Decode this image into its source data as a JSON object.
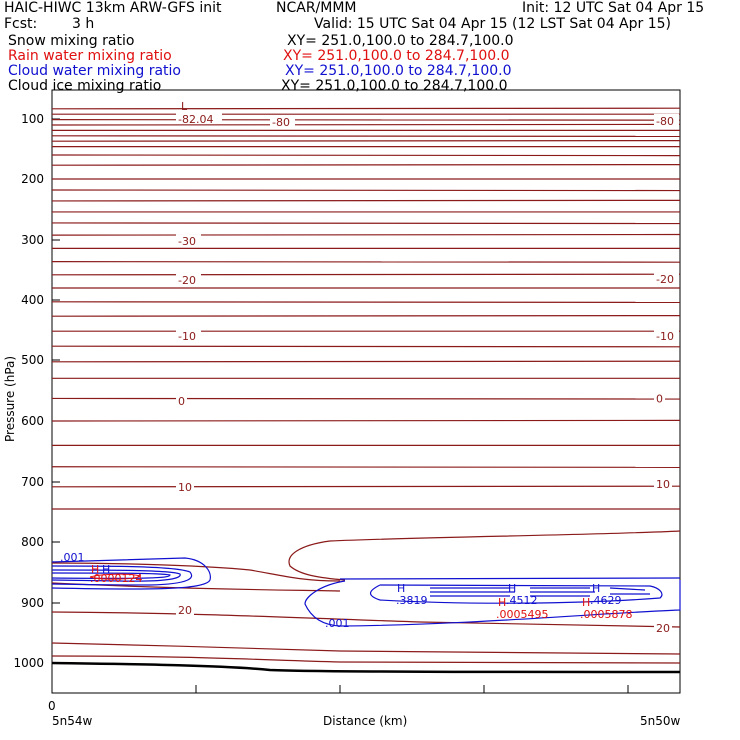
{
  "header": {
    "model": "HAIC-HIWC 13km ARW-GFS init",
    "org": "NCAR/MMM",
    "init": "Init: 12 UTC Sat 04 Apr 15",
    "fcst_label": "Fcst:",
    "fcst_value": "3 h",
    "valid": "Valid: 15 UTC Sat 04 Apr 15 (12 LST Sat 04 Apr 15)"
  },
  "fields": [
    {
      "name": "Snow mixing ratio",
      "xy": "XY= 251.0,100.0 to 284.7,100.0",
      "color": "#000000"
    },
    {
      "name": "Rain water mixing ratio",
      "xy": "XY= 251.0,100.0 to 284.7,100.0",
      "color": "#e01010"
    },
    {
      "name": "Cloud water mixing ratio",
      "xy": "XY= 251.0,100.0 to 284.7,100.0",
      "color": "#1010d0"
    },
    {
      "name": "Cloud ice mixing ratio",
      "xy": "XY= 251.0,100.0 to 284.7,100.0",
      "color": "#000000"
    }
  ],
  "chart_data": {
    "type": "contour-cross-section",
    "ylabel": "Pressure (hPa)",
    "xlabel": "Distance (km)",
    "y_ticks": [
      100,
      200,
      300,
      400,
      500,
      600,
      700,
      800,
      900,
      1000
    ],
    "x_tick_zero": "0",
    "x_left_label": "5n54w",
    "x_right_label": "5n50w",
    "temperature_labels": [
      {
        "text": "-82.04",
        "side": "left",
        "pressure": 100
      },
      {
        "text": "-80",
        "side": "middle",
        "pressure": 105
      },
      {
        "text": "-80",
        "side": "right",
        "pressure": 103
      },
      {
        "text": "-30",
        "side": "left",
        "pressure": 302
      },
      {
        "text": "-20",
        "side": "left",
        "pressure": 367
      },
      {
        "text": "-20",
        "side": "right",
        "pressure": 365
      },
      {
        "text": "-10",
        "side": "left",
        "pressure": 460
      },
      {
        "text": "-10",
        "side": "right",
        "pressure": 460
      },
      {
        "text": "0",
        "side": "left",
        "pressure": 567
      },
      {
        "text": "0",
        "side": "right",
        "pressure": 563
      },
      {
        "text": "10",
        "side": "left",
        "pressure": 708
      },
      {
        "text": "10",
        "side": "right",
        "pressure": 703
      },
      {
        "text": "20",
        "side": "left",
        "pressure": 912
      },
      {
        "text": "20",
        "side": "right",
        "pressure": 942
      }
    ],
    "low_marker": {
      "text": "L",
      "pressure": 80
    },
    "cloud_water_labels": [
      {
        "text": ".001",
        "where": "left-top"
      },
      {
        "text": ".001",
        "where": "bottom"
      },
      {
        "text": ".3819",
        "where": "cell-1"
      },
      {
        "text": ".4512",
        "where": "cell-2"
      },
      {
        "text": ".4629",
        "where": "cell-3"
      }
    ],
    "rain_labels": [
      {
        "text": ".0000124",
        "where": "left"
      },
      {
        "text": ".0005495",
        "where": "cell-2"
      },
      {
        "text": ".0005878",
        "where": "cell-3"
      }
    ],
    "high_marker": "H"
  }
}
